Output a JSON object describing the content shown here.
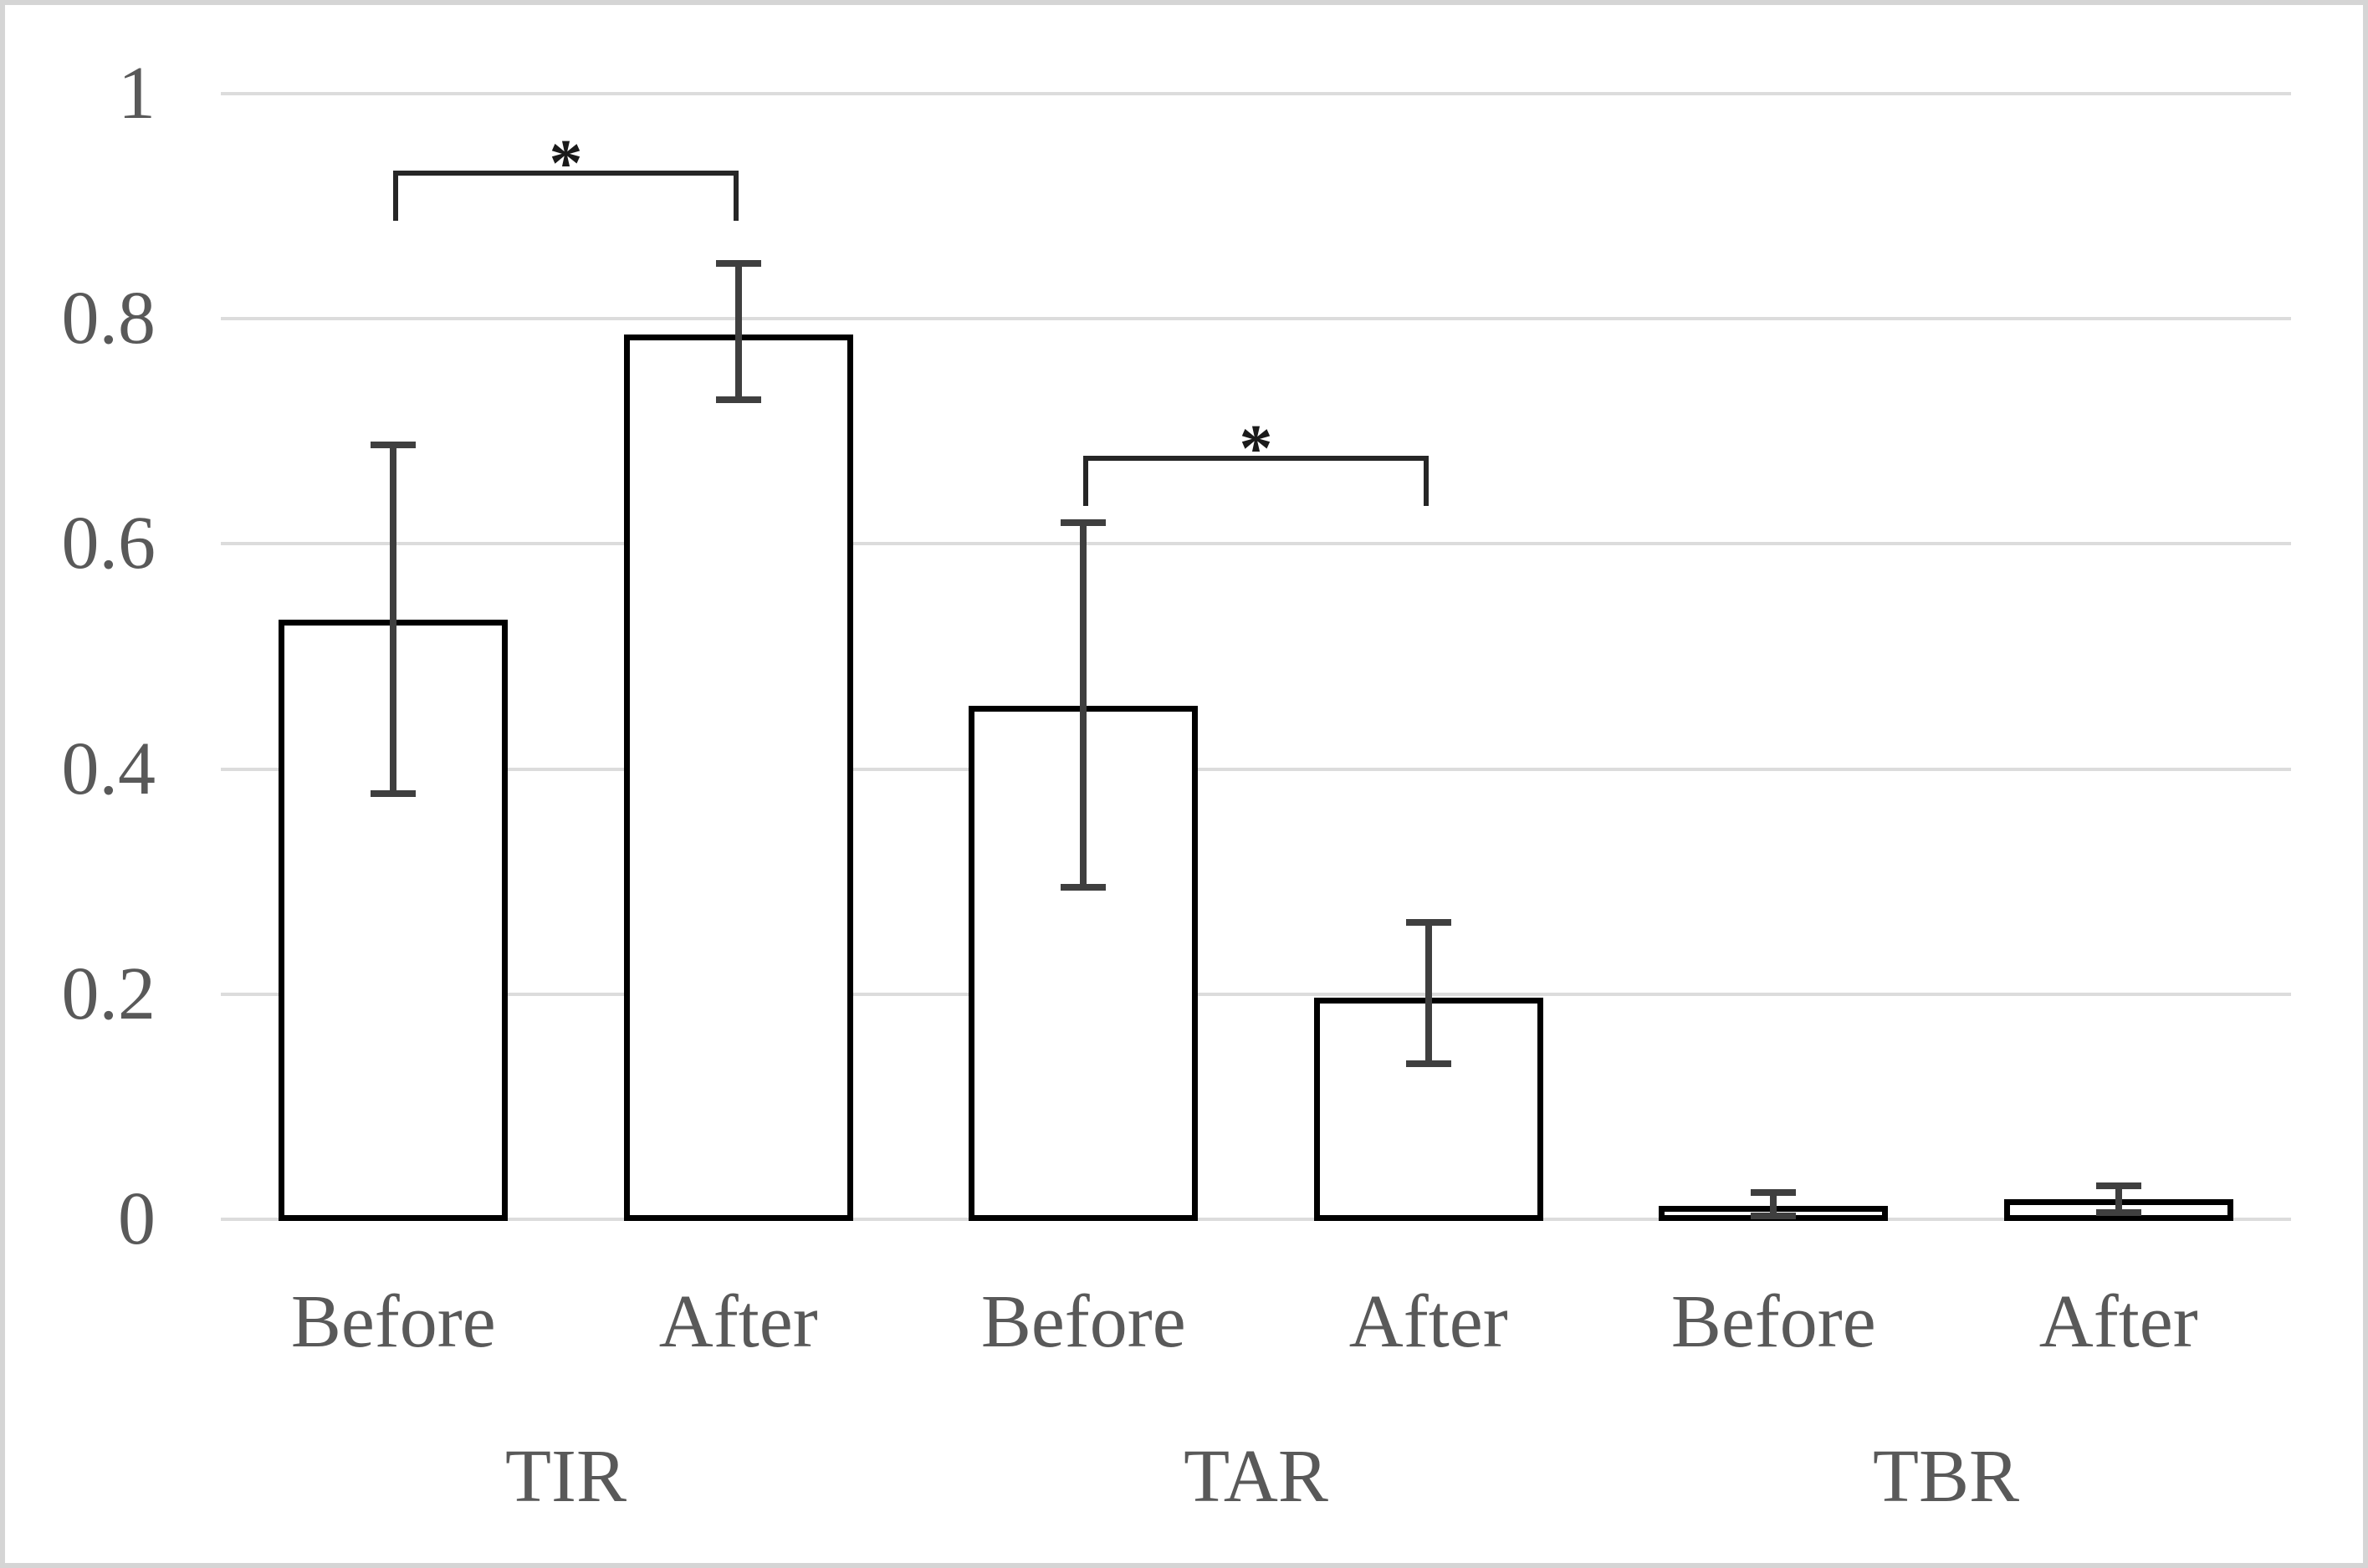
{
  "chart_data": {
    "type": "bar",
    "title": "",
    "xlabel": "",
    "ylabel": "",
    "categories": [
      "TIR",
      "TAR",
      "TBR"
    ],
    "series": [
      {
        "group": "TIR",
        "condition": "Before",
        "value": 0.533,
        "error_low": 0.378,
        "error_high": 0.688
      },
      {
        "group": "TIR",
        "condition": "After",
        "value": 0.786,
        "error_low": 0.728,
        "error_high": 0.849
      },
      {
        "group": "TAR",
        "condition": "Before",
        "value": 0.456,
        "error_low": 0.295,
        "error_high": 0.619
      },
      {
        "group": "TAR",
        "condition": "After",
        "value": 0.197,
        "error_low": 0.138,
        "error_high": 0.264
      },
      {
        "group": "TBR",
        "condition": "Before",
        "value": 0.012,
        "error_low": 0.003,
        "error_high": 0.024
      },
      {
        "group": "TBR",
        "condition": "After",
        "value": 0.018,
        "error_low": 0.006,
        "error_high": 0.03
      }
    ],
    "y_axis": {
      "min": 0,
      "max": 1,
      "tick_step": 0.2,
      "tick_labels": [
        "0",
        "0.2",
        "0.4",
        "0.6",
        "0.8",
        "1"
      ]
    },
    "grid": true,
    "legend": "none",
    "significance": [
      {
        "from_bar": 0,
        "to_bar": 1,
        "label": "*",
        "bracket_y": 0.932
      },
      {
        "from_bar": 2,
        "to_bar": 3,
        "label": "*",
        "bracket_y": 0.678
      }
    ],
    "colors": {
      "bar_fill": "#ffffff",
      "bar_border": "#000000",
      "error_bar": "#3f3f3f",
      "gridline": "#dcdcdc",
      "axis_label": "#595959",
      "bracket": "#262626",
      "asterisk": "#1a1a1a",
      "frame_border": "#d5d5d5"
    }
  }
}
